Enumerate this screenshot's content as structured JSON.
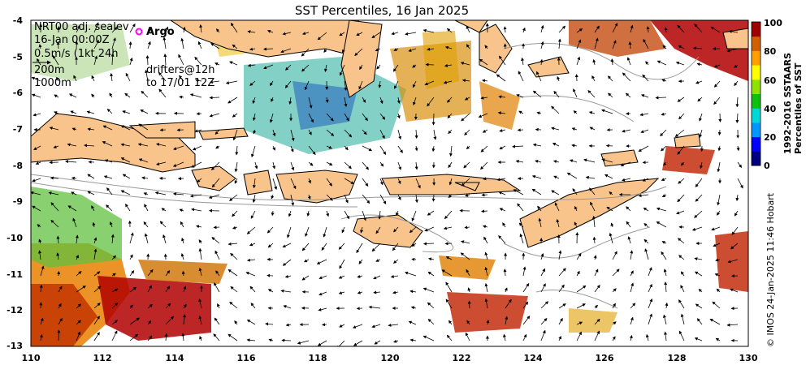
{
  "title": "SST Percentiles, 16 Jan 2025",
  "annotations": {
    "product": "NRT00 adj. sealev",
    "datetime": "16-Jan 00:00Z",
    "arrow_scale": "0.5m/s (1kt 24h",
    "contour_200": "200m",
    "contour_1000": "1000m",
    "argo_marker": "o",
    "argo_label": "Argo",
    "drifters1": "drifters@12h",
    "drifters2": "to 17/01 12Z"
  },
  "axes": {
    "lon_ticks": [
      "110",
      "112",
      "114",
      "116",
      "118",
      "120",
      "122",
      "124",
      "126",
      "128",
      "130"
    ],
    "lat_ticks": [
      "-4",
      "-5",
      "-6",
      "-7",
      "-8",
      "-9",
      "-10",
      "-11",
      "-12",
      "-13"
    ]
  },
  "colorbar": {
    "ticks": [
      "100",
      "80",
      "60",
      "40",
      "20",
      "0"
    ],
    "label_line1": "1992-2016 SSTAARS",
    "label_line2": "Percentiles of SST",
    "colors": [
      "#00007f",
      "#0000ff",
      "#0096ff",
      "#00d8d8",
      "#10c010",
      "#90e000",
      "#ffff00",
      "#ffa000",
      "#d06000",
      "#a00000"
    ]
  },
  "credit": "© IMOS 24-Jan-2025 11:46 Hobart",
  "colors": {
    "land": "#f9c48b",
    "coast": "#000000",
    "isobath": "#999999",
    "argo": "#ff00ff"
  }
}
